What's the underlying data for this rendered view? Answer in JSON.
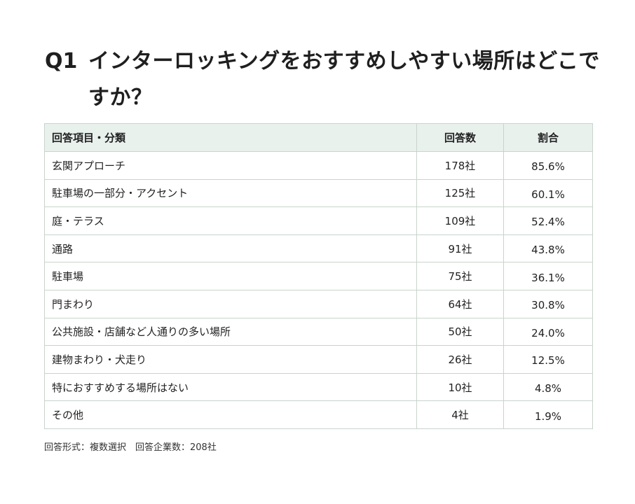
{
  "question": {
    "number": "Q1",
    "text": "インターロッキングをおすすめしやすい場所はどこですか？"
  },
  "table": {
    "headers": {
      "item": "回答項目・分類",
      "count": "回答数",
      "ratio": "割合"
    },
    "rows": [
      {
        "item": "玄関アプローチ",
        "count": "178社",
        "ratio": "85.6%"
      },
      {
        "item": "駐車場の一部分・アクセント",
        "count": "125社",
        "ratio": "60.1%"
      },
      {
        "item": "庭・テラス",
        "count": "109社",
        "ratio": "52.4%"
      },
      {
        "item": "通路",
        "count": "91社",
        "ratio": "43.8%"
      },
      {
        "item": "駐車場",
        "count": "75社",
        "ratio": "36.1%"
      },
      {
        "item": "門まわり",
        "count": "64社",
        "ratio": "30.8%"
      },
      {
        "item": "公共施設・店舗など人通りの多い場所",
        "count": "50社",
        "ratio": "24.0%"
      },
      {
        "item": "建物まわり・犬走り",
        "count": "26社",
        "ratio": "12.5%"
      },
      {
        "item": "特におすすめする場所はない",
        "count": "10社",
        "ratio": "4.8%"
      },
      {
        "item": "その他",
        "count": "4社",
        "ratio": "1.9%"
      }
    ]
  },
  "footnote": "回答形式：複数選択　回答企業数：208社",
  "colors": {
    "header_background": "#e9f1ed",
    "border": "#c9d3cd",
    "text": "#222222"
  }
}
